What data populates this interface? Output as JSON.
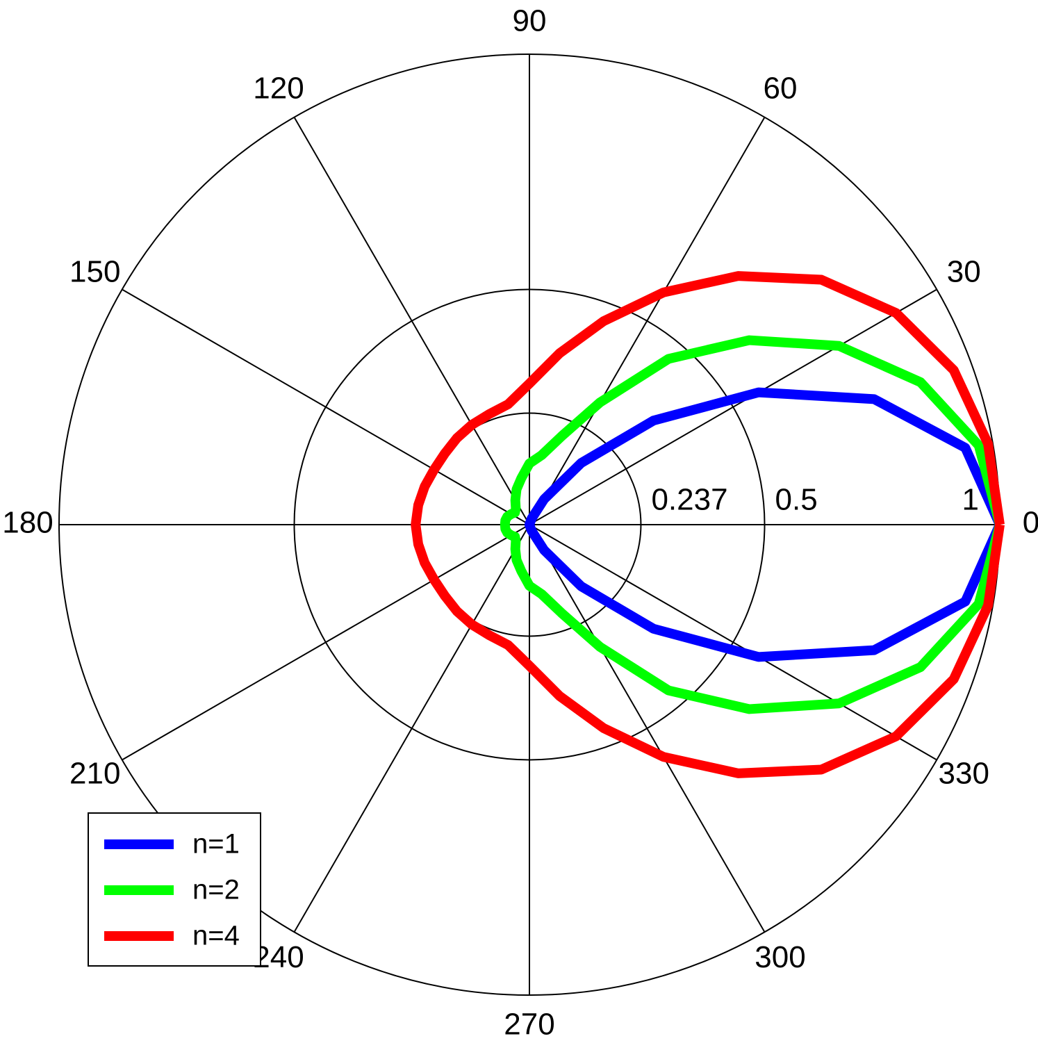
{
  "chart_data": {
    "type": "polar",
    "theta": [
      0,
      10,
      20,
      30,
      40,
      50,
      60,
      70,
      80,
      90,
      100,
      110,
      120,
      130,
      140,
      150,
      160,
      170,
      180,
      190,
      200,
      210,
      220,
      230,
      240,
      250,
      260,
      270,
      280,
      290,
      300,
      310,
      320,
      330,
      340,
      350,
      360
    ],
    "series": [
      {
        "name": "n=1",
        "color": "#0000ff",
        "values": [
          1,
          0.941,
          0.78,
          0.5625,
          0.344,
          0.171,
          0.0625,
          0.0137,
          0.0009,
          0,
          0,
          0,
          0,
          0,
          0,
          0,
          0,
          0,
          0,
          0,
          0,
          0,
          0,
          0,
          0,
          0,
          0,
          0,
          0.0009,
          0.0137,
          0.0625,
          0.171,
          0.344,
          0.5625,
          0.78,
          0.941,
          1
        ]
      },
      {
        "name": "n=2",
        "color": "#00ff00",
        "values": [
          1,
          0.97,
          0.885,
          0.76,
          0.61,
          0.46,
          0.3,
          0.2,
          0.15,
          0.13,
          0.1,
          0.08,
          0.06,
          0.045,
          0.04,
          0.045,
          0.05,
          0.052,
          0.052,
          0.052,
          0.05,
          0.045,
          0.04,
          0.045,
          0.06,
          0.08,
          0.1,
          0.13,
          0.15,
          0.2,
          0.3,
          0.46,
          0.61,
          0.76,
          0.885,
          0.97,
          1
        ]
      },
      {
        "name": "n=4",
        "color": "#ff0000",
        "values": [
          1,
          0.99,
          0.96,
          0.9,
          0.81,
          0.69,
          0.57,
          0.46,
          0.37,
          0.3,
          0.26,
          0.25,
          0.245,
          0.24,
          0.235,
          0.234,
          0.237,
          0.24,
          0.242,
          0.24,
          0.237,
          0.234,
          0.235,
          0.24,
          0.245,
          0.25,
          0.26,
          0.3,
          0.37,
          0.46,
          0.57,
          0.69,
          0.81,
          0.9,
          0.96,
          0.99,
          1
        ]
      }
    ],
    "rlim": [
      0,
      1
    ],
    "rticks": [
      0.237,
      0.5,
      1
    ],
    "thetaticks": [
      0,
      30,
      60,
      90,
      120,
      150,
      180,
      210,
      240,
      270,
      300,
      330
    ],
    "legend": "lower left"
  }
}
